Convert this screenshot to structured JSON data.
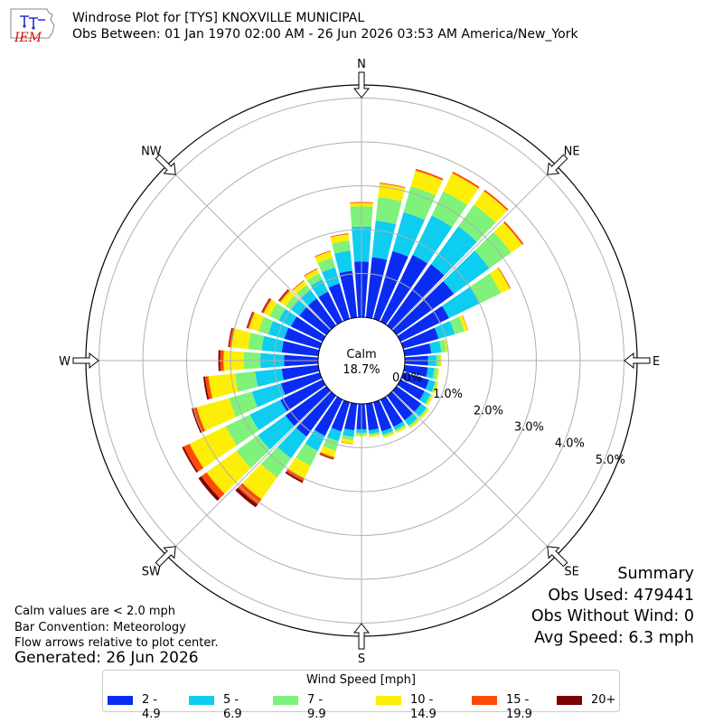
{
  "header": {
    "title": "Windrose Plot for [TYS] KNOXVILLE MUNICIPAL",
    "subtitle": "Obs Between: 01 Jan 1970 02:00 AM - 26 Jun 2026 03:53 AM America/New_York",
    "logo_text": "IEM"
  },
  "notes": {
    "calm_note": "Calm values are < 2.0 mph",
    "bar_convention": "Bar Convention: Meteorology",
    "flow_arrows": "Flow arrows relative to plot center.",
    "generated": "Generated: 26 Jun 2026"
  },
  "summary": {
    "title": "Summary",
    "obs_used": "Obs Used: 479441",
    "obs_without_wind": "Obs Without Wind: 0",
    "avg_speed": "Avg Speed: 6.3 mph"
  },
  "legend": {
    "title": "Wind Speed [mph]"
  },
  "chart_data": {
    "type": "windrose",
    "calm_label": "Calm",
    "calm_value": "18.7%",
    "radial_ticks": [
      "0.0%",
      "1.0%",
      "2.0%",
      "3.0%",
      "4.0%",
      "5.0%"
    ],
    "radial_max": 5.3,
    "cardinal_labels": [
      "N",
      "NE",
      "E",
      "SE",
      "S",
      "SW",
      "W",
      "NW"
    ],
    "colors": [
      "#0a2cf2",
      "#0dcdf0",
      "#7ef27a",
      "#fcee06",
      "#ff4b06",
      "#7d0404"
    ],
    "speed_bins": [
      "2 - 4.9",
      "5 - 6.9",
      "7 - 9.9",
      "10 - 14.9",
      "15 - 19.9",
      "20+"
    ],
    "directions": [
      0,
      10,
      20,
      30,
      40,
      50,
      60,
      70,
      80,
      90,
      100,
      110,
      120,
      130,
      140,
      150,
      160,
      170,
      180,
      190,
      200,
      210,
      220,
      230,
      240,
      250,
      260,
      270,
      280,
      290,
      300,
      310,
      320,
      330,
      340,
      350
    ],
    "series": [
      {
        "name": "2 - 4.9",
        "values": [
          1.27,
          1.38,
          1.61,
          1.69,
          1.72,
          1.61,
          1.23,
          0.84,
          0.61,
          0.53,
          0.53,
          0.61,
          0.61,
          0.69,
          0.69,
          0.69,
          0.69,
          0.61,
          0.58,
          0.61,
          0.69,
          0.92,
          1.15,
          1.15,
          1.07,
          0.92,
          0.84,
          0.78,
          0.84,
          0.84,
          0.8,
          0.76,
          0.76,
          0.76,
          0.84,
          1.07
        ]
      },
      {
        "name": "5 - 6.9",
        "values": [
          0.8,
          0.84,
          0.92,
          1.0,
          1.07,
          1.0,
          0.77,
          0.38,
          0.23,
          0.19,
          0.15,
          0.15,
          0.15,
          0.15,
          0.15,
          0.08,
          0.08,
          0.08,
          0.08,
          0.15,
          0.23,
          0.38,
          0.61,
          0.77,
          0.77,
          0.69,
          0.61,
          0.54,
          0.46,
          0.38,
          0.31,
          0.23,
          0.23,
          0.31,
          0.38,
          0.46
        ]
      },
      {
        "name": "7 - 9.9",
        "values": [
          0.46,
          0.54,
          0.61,
          0.61,
          0.61,
          0.61,
          0.54,
          0.23,
          0.12,
          0.08,
          0.08,
          0.04,
          0.04,
          0.04,
          0.04,
          0.04,
          0.04,
          0.04,
          0.04,
          0.08,
          0.23,
          0.38,
          0.54,
          0.61,
          0.61,
          0.54,
          0.46,
          0.38,
          0.31,
          0.23,
          0.23,
          0.15,
          0.15,
          0.15,
          0.23,
          0.23
        ]
      },
      {
        "name": "10 - 14.9",
        "values": [
          0.08,
          0.31,
          0.38,
          0.46,
          0.38,
          0.31,
          0.23,
          0.08,
          0.04,
          0.04,
          0.04,
          0.04,
          0.04,
          0.04,
          0.04,
          0.04,
          0.04,
          0.04,
          0.04,
          0.08,
          0.15,
          0.31,
          0.61,
          0.84,
          0.92,
          0.77,
          0.61,
          0.46,
          0.38,
          0.23,
          0.15,
          0.15,
          0.11,
          0.11,
          0.15,
          0.15
        ]
      },
      {
        "name": "15 - 19.9",
        "values": [
          0.02,
          0.02,
          0.04,
          0.04,
          0.04,
          0.04,
          0.02,
          0.01,
          0.01,
          0.0,
          0.0,
          0.0,
          0.0,
          0.0,
          0.0,
          0.0,
          0.0,
          0.0,
          0.0,
          0.01,
          0.04,
          0.08,
          0.15,
          0.15,
          0.15,
          0.08,
          0.08,
          0.08,
          0.06,
          0.04,
          0.04,
          0.04,
          0.02,
          0.02,
          0.02,
          0.02
        ]
      },
      {
        "name": "20+",
        "values": [
          0.0,
          0.0,
          0.0,
          0.0,
          0.0,
          0.0,
          0.0,
          0.0,
          0.0,
          0.0,
          0.0,
          0.0,
          0.0,
          0.0,
          0.0,
          0.0,
          0.0,
          0.0,
          0.0,
          0.0,
          0.02,
          0.04,
          0.08,
          0.08,
          0.04,
          0.04,
          0.04,
          0.04,
          0.02,
          0.02,
          0.02,
          0.02,
          0.0,
          0.0,
          0.0,
          0.0
        ]
      }
    ],
    "grid": true
  }
}
